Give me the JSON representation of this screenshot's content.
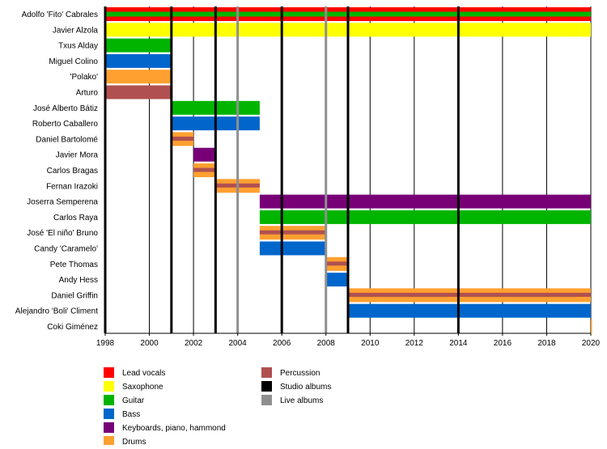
{
  "chart_data": {
    "type": "timeline",
    "xlim": [
      1998,
      2020
    ],
    "x_ticks": [
      1998,
      2000,
      2002,
      2004,
      2006,
      2008,
      2010,
      2012,
      2014,
      2016,
      2018,
      2020
    ],
    "grid": true,
    "legend_placement": "bottom",
    "colors": {
      "Lead vocals": "#ff0000",
      "Saxophone": "#ffff00",
      "Guitar": "#00b400",
      "Bass": "#0066cc",
      "Keyboards, piano, hammond": "#770077",
      "Drums": "#ffa030",
      "Percussion": "#b05050",
      "Studio albums": "#000000",
      "Live albums": "#8f8f8f"
    },
    "members": [
      {
        "name": "Adolfo 'Fito' Cabrales",
        "role": "Lead vocals",
        "secondary": "Guitar",
        "start": 1998,
        "end": 2020
      },
      {
        "name": "Javier Alzola",
        "role": "Saxophone",
        "start": 1998,
        "end": 2020
      },
      {
        "name": "Txus Alday",
        "role": "Guitar",
        "start": 1998,
        "end": 2001
      },
      {
        "name": "Miguel Colino",
        "role": "Bass",
        "start": 1998,
        "end": 2001
      },
      {
        "name": "'Polako'",
        "role": "Drums",
        "start": 1998,
        "end": 2001
      },
      {
        "name": "Arturo",
        "role": "Percussion",
        "start": 1998,
        "end": 2001
      },
      {
        "name": "José Alberto Bátiz",
        "role": "Guitar",
        "start": 2001,
        "end": 2005
      },
      {
        "name": "Roberto Caballero",
        "role": "Bass",
        "start": 2001,
        "end": 2005
      },
      {
        "name": "Daniel Bartolomé",
        "role": "Drums",
        "secondary": "Percussion",
        "start": 2001,
        "end": 2002
      },
      {
        "name": "Javier Mora",
        "role": "Keyboards, piano, hammond",
        "start": 2002,
        "end": 2003
      },
      {
        "name": "Carlos Bragas",
        "role": "Drums",
        "secondary": "Percussion",
        "start": 2002,
        "end": 2003
      },
      {
        "name": "Fernan Irazoki",
        "role": "Drums",
        "secondary": "Percussion",
        "start": 2003,
        "end": 2005
      },
      {
        "name": "Joserra Semperena",
        "role": "Keyboards, piano, hammond",
        "start": 2005,
        "end": 2020
      },
      {
        "name": "Carlos Raya",
        "role": "Guitar",
        "start": 2005,
        "end": 2020
      },
      {
        "name": "José 'El niño' Bruno",
        "role": "Drums",
        "secondary": "Percussion",
        "start": 2005,
        "end": 2008
      },
      {
        "name": "Candy 'Caramelo'",
        "role": "Bass",
        "start": 2005,
        "end": 2008
      },
      {
        "name": "Pete Thomas",
        "role": "Drums",
        "secondary": "Percussion",
        "start": 2008,
        "end": 2009
      },
      {
        "name": "Andy Hess",
        "role": "Bass",
        "start": 2008,
        "end": 2009
      },
      {
        "name": "Daniel Griffin",
        "role": "Drums",
        "secondary": "Percussion",
        "start": 2009,
        "end": 2020
      },
      {
        "name": "Alejandro 'Boli' Climent",
        "role": "Bass",
        "start": 2009,
        "end": 2020
      },
      {
        "name": "Coki Giménez",
        "role": "Drums",
        "start": 2020,
        "end": 2020
      }
    ],
    "studio_albums": [
      1998,
      2001,
      2003,
      2006,
      2009,
      2014
    ],
    "live_albums": [
      2004,
      2008
    ],
    "legend": [
      [
        "Lead vocals",
        "Saxophone",
        "Guitar",
        "Bass",
        "Keyboards, piano, hammond",
        "Drums"
      ],
      [
        "Percussion",
        "Studio albums",
        "Live albums"
      ]
    ]
  }
}
